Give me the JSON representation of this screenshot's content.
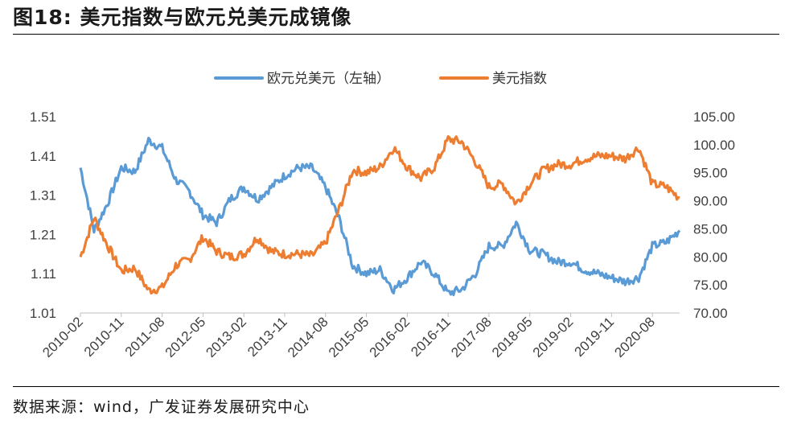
{
  "figure": {
    "label": "图18:",
    "title": "美元指数与欧元兑美元成镜像",
    "source": "数据来源：wind，广发证券发展研究中心"
  },
  "colors": {
    "eurusd": "#5B9BD5",
    "dxy": "#ED7D31",
    "text": "#404040"
  },
  "chart_data": {
    "type": "line",
    "title": "美元指数与欧元兑美元成镜像",
    "legend_position": "top-center",
    "x": [
      "2010-02",
      "2010-05",
      "2010-08",
      "2010-11",
      "2011-02",
      "2011-05",
      "2011-08",
      "2011-11",
      "2012-02",
      "2012-05",
      "2012-08",
      "2012-11",
      "2013-02",
      "2013-05",
      "2013-08",
      "2013-11",
      "2014-02",
      "2014-05",
      "2014-08",
      "2014-11",
      "2015-02",
      "2015-05",
      "2015-08",
      "2015-11",
      "2016-02",
      "2016-05",
      "2016-08",
      "2016-11",
      "2017-02",
      "2017-05",
      "2017-08",
      "2017-11",
      "2018-02",
      "2018-05",
      "2018-08",
      "2018-11",
      "2019-02",
      "2019-05",
      "2019-08",
      "2019-11",
      "2020-02",
      "2020-05",
      "2020-08",
      "2020-11",
      "2021-02"
    ],
    "xticks": [
      "2010-02",
      "2010-11",
      "2011-08",
      "2012-05",
      "2013-02",
      "2013-11",
      "2014-08",
      "2015-05",
      "2016-02",
      "2016-11",
      "2017-08",
      "2018-05",
      "2019-02",
      "2019-11",
      "2020-08"
    ],
    "series": [
      {
        "name": "欧元兑美元（左轴）",
        "axis": "left",
        "color": "#5B9BD5",
        "values": [
          1.38,
          1.22,
          1.29,
          1.38,
          1.37,
          1.45,
          1.43,
          1.35,
          1.32,
          1.26,
          1.24,
          1.3,
          1.33,
          1.3,
          1.33,
          1.36,
          1.38,
          1.38,
          1.33,
          1.25,
          1.13,
          1.11,
          1.12,
          1.07,
          1.1,
          1.14,
          1.11,
          1.06,
          1.07,
          1.11,
          1.18,
          1.18,
          1.24,
          1.17,
          1.16,
          1.14,
          1.14,
          1.12,
          1.11,
          1.1,
          1.09,
          1.1,
          1.18,
          1.19,
          1.22
        ]
      },
      {
        "name": "美元指数",
        "axis": "right",
        "color": "#ED7D31",
        "values": [
          80.0,
          87.0,
          82.0,
          77.5,
          78.0,
          74.0,
          74.5,
          78.5,
          79.5,
          83.5,
          81.0,
          80.0,
          80.5,
          83.5,
          81.0,
          80.5,
          80.5,
          80.2,
          82.5,
          88.5,
          95.5,
          95.0,
          96.0,
          99.5,
          96.0,
          94.0,
          96.0,
          101.0,
          100.5,
          97.0,
          92.5,
          93.0,
          89.5,
          93.0,
          95.5,
          96.5,
          96.5,
          97.5,
          98.0,
          98.0,
          97.5,
          99.5,
          93.0,
          92.5,
          90.5
        ]
      }
    ],
    "y_left": {
      "ylim": [
        1.01,
        1.51
      ],
      "ticks": [
        "1.01",
        "1.11",
        "1.21",
        "1.31",
        "1.41",
        "1.51"
      ]
    },
    "y_right": {
      "ylim": [
        70,
        105
      ],
      "ticks": [
        "70.00",
        "75.00",
        "80.00",
        "85.00",
        "90.00",
        "95.00",
        "100.00",
        "105.00"
      ]
    },
    "grid": false
  }
}
